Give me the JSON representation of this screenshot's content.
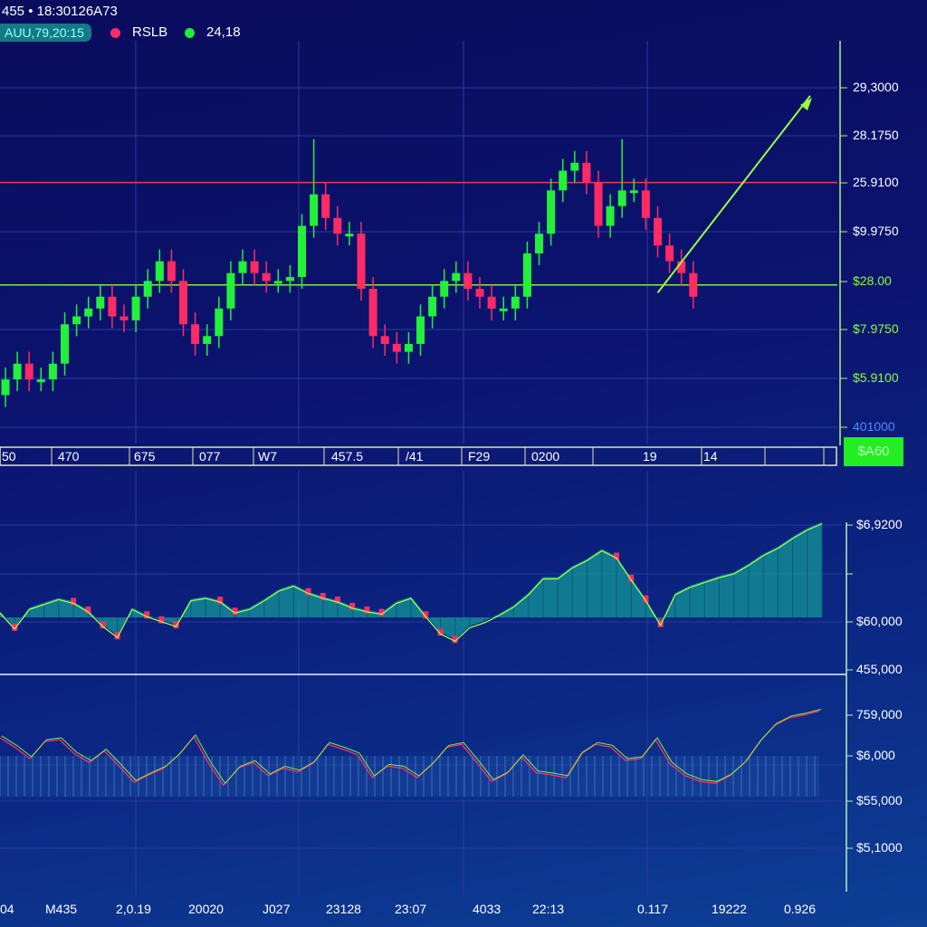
{
  "header": {
    "symbol_line": "455  •  18:30126A73",
    "time_pill": "AUU,79,20:15",
    "legend": [
      {
        "label": "RSLB",
        "color": "#ff2a6a"
      },
      {
        "label": "24,18",
        "color": "#22ee33"
      }
    ]
  },
  "current_price": "$A60",
  "colors": {
    "up": "#22f03a",
    "down": "#ff2a66",
    "grid": "#2a3aa0",
    "axis": "#b8f07a"
  },
  "chart_data": [
    {
      "type": "candlestick",
      "title": "Price",
      "ylim": [
        0,
        100
      ],
      "open": [
        10,
        14,
        18,
        14,
        14,
        18,
        28,
        30,
        32,
        35,
        30,
        29,
        35,
        39,
        44,
        39,
        28,
        23,
        25,
        32,
        41,
        44,
        41,
        39,
        39,
        40,
        53,
        61,
        55,
        51,
        51,
        37,
        25,
        23,
        21,
        23,
        30,
        35,
        39,
        41,
        37,
        35,
        32,
        32,
        35,
        46,
        51,
        62,
        67,
        69,
        64,
        53,
        58,
        62,
        62,
        55,
        48,
        44,
        41
      ],
      "high": [
        17,
        21,
        21,
        17,
        21,
        31,
        33,
        35,
        38,
        38,
        33,
        38,
        42,
        47,
        47,
        42,
        31,
        28,
        35,
        44,
        47,
        47,
        44,
        42,
        43,
        56,
        75,
        64,
        58,
        54,
        54,
        40,
        28,
        26,
        26,
        33,
        38,
        42,
        44,
        44,
        40,
        38,
        35,
        38,
        49,
        54,
        65,
        70,
        72,
        72,
        67,
        61,
        75,
        65,
        65,
        58,
        51,
        47,
        44
      ],
      "low": [
        7,
        11,
        11,
        11,
        11,
        15,
        25,
        27,
        29,
        27,
        26,
        26,
        32,
        36,
        36,
        25,
        20,
        20,
        22,
        29,
        38,
        38,
        36,
        36,
        36,
        37,
        50,
        52,
        48,
        48,
        34,
        22,
        20,
        18,
        18,
        20,
        27,
        32,
        36,
        34,
        32,
        29,
        29,
        29,
        32,
        43,
        48,
        59,
        64,
        61,
        50,
        50,
        55,
        59,
        52,
        45,
        41,
        38,
        32
      ],
      "close": [
        14,
        18,
        14,
        14,
        18,
        28,
        30,
        32,
        35,
        30,
        29,
        35,
        39,
        44,
        39,
        28,
        23,
        25,
        32,
        41,
        44,
        41,
        39,
        39,
        40,
        53,
        61,
        55,
        51,
        51,
        37,
        25,
        23,
        21,
        23,
        30,
        35,
        39,
        41,
        37,
        35,
        32,
        32,
        35,
        46,
        51,
        62,
        67,
        69,
        64,
        53,
        58,
        62,
        62,
        55,
        48,
        44,
        41,
        35
      ],
      "resistance": 64,
      "support": 38,
      "trend_arrow": {
        "from": [
          55,
          36
        ],
        "to": [
          60,
          86
        ]
      },
      "y_tick_labels": [
        "29,3000",
        "28.1750",
        "25.9100",
        "$9.9750",
        "$28.00",
        "$7.9750",
        "$5.9100",
        "401000"
      ],
      "x_tick_labels": [
        "50",
        "470",
        "675",
        "077",
        "W7",
        "457.5",
        "/41",
        "F29",
        "0200",
        "19",
        "14"
      ]
    },
    {
      "type": "area",
      "title": "Volume histogram",
      "ylim": [
        -3,
        8
      ],
      "values": [
        0.5,
        -0.8,
        0.8,
        1.2,
        1.6,
        1.3,
        0.6,
        -0.6,
        -1.5,
        0.8,
        0.2,
        -0.2,
        -0.6,
        1.5,
        1.7,
        1.4,
        0.5,
        0.8,
        1.5,
        2.3,
        2.7,
        2.1,
        1.7,
        1.4,
        0.9,
        0.6,
        0.4,
        1.3,
        1.7,
        0.2,
        -1.2,
        -1.8,
        -0.7,
        -0.3,
        0.3,
        1.0,
        2.0,
        3.3,
        3.3,
        4.2,
        4.8,
        5.6,
        5.0,
        3.2,
        1.5,
        -0.5,
        2.0,
        2.6,
        3.0,
        3.4,
        3.7,
        4.4,
        5.2,
        5.8,
        6.6,
        7.3,
        7.8
      ],
      "y_tick_labels": [
        "$6,9200",
        "",
        "$60,000",
        "455,000"
      ]
    },
    {
      "type": "line",
      "title": "Oscillator",
      "ylim": [
        0,
        10
      ],
      "values": [
        6.2,
        5.2,
        4.0,
        5.8,
        6.0,
        4.5,
        3.6,
        4.8,
        3.2,
        1.5,
        2.3,
        3.0,
        4.4,
        6.3,
        3.5,
        1.2,
        3.0,
        3.6,
        2.2,
        3.0,
        2.6,
        3.5,
        5.5,
        5.0,
        4.4,
        2.0,
        3.2,
        3.0,
        2.0,
        3.4,
        5.2,
        5.5,
        3.6,
        1.6,
        2.4,
        4.2,
        2.5,
        2.3,
        2.0,
        4.5,
        5.5,
        5.2,
        3.8,
        4.0,
        6.0,
        3.4,
        2.2,
        1.6,
        1.4,
        2.2,
        3.6,
        5.8,
        7.5,
        8.3,
        8.6,
        9.0
      ],
      "y_tick_labels": [
        "759,000",
        "$6,000",
        "$55,000",
        "$5,1000"
      ],
      "x_tick_labels": [
        "04",
        "M435",
        "2,0.19",
        "20020",
        "J027",
        "23128",
        "23:07",
        "4033",
        "22:13",
        "0.117",
        "19222",
        "0.926"
      ]
    }
  ]
}
